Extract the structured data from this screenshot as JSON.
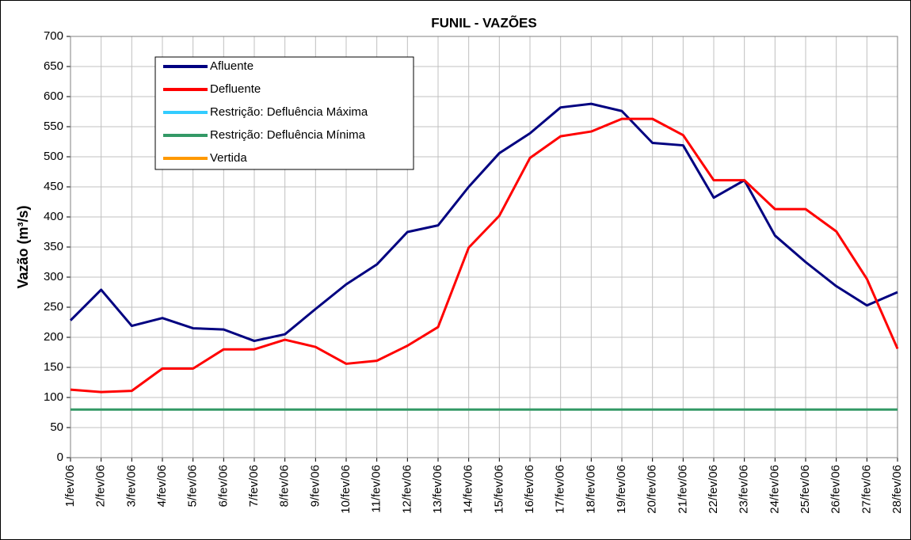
{
  "chart_data": {
    "type": "line",
    "title": "FUNIL - VAZÕES",
    "ylabel": "Vazão (m³/s)",
    "categories": [
      "1/fev/06",
      "2/fev/06",
      "3/fev/06",
      "4/fev/06",
      "5/fev/06",
      "6/fev/06",
      "7/fev/06",
      "8/fev/06",
      "9/fev/06",
      "10/fev/06",
      "11/fev/06",
      "12/fev/06",
      "13/fev/06",
      "14/fev/06",
      "15/fev/06",
      "16/fev/06",
      "17/fev/06",
      "18/fev/06",
      "19/fev/06",
      "20/fev/06",
      "21/fev/06",
      "22/fev/06",
      "23/fev/06",
      "24/fev/06",
      "25/fev/06",
      "26/fev/06",
      "27/fev/06",
      "28/fev/06"
    ],
    "series": [
      {
        "name": "Afluente",
        "color": "#000080",
        "values": [
          228,
          279,
          219,
          232,
          215,
          213,
          194,
          205,
          247,
          288,
          321,
          375,
          386,
          450,
          506,
          539,
          582,
          588,
          576,
          523,
          519,
          432,
          461,
          369,
          325,
          285,
          253,
          275
        ]
      },
      {
        "name": "Defluente",
        "color": "#ff0000",
        "values": [
          113,
          109,
          111,
          148,
          148,
          180,
          180,
          196,
          184,
          156,
          161,
          186,
          217,
          349,
          402,
          498,
          534,
          542,
          563,
          563,
          536,
          461,
          461,
          413,
          413,
          376,
          297,
          181
        ]
      },
      {
        "name": "Restrição: Defluência Máxima",
        "color": "#33ccff",
        "values": [
          null,
          null,
          null,
          null,
          null,
          null,
          null,
          null,
          null,
          null,
          null,
          null,
          null,
          null,
          null,
          null,
          null,
          null,
          null,
          null,
          null,
          null,
          null,
          null,
          null,
          null,
          null,
          null
        ]
      },
      {
        "name": "Restrição: Defluência Mínima",
        "color": "#339966",
        "values": [
          80,
          80,
          80,
          80,
          80,
          80,
          80,
          80,
          80,
          80,
          80,
          80,
          80,
          80,
          80,
          80,
          80,
          80,
          80,
          80,
          80,
          80,
          80,
          80,
          80,
          80,
          80,
          80
        ]
      },
      {
        "name": "Vertida",
        "color": "#ff9900",
        "values": [
          null,
          null,
          null,
          null,
          null,
          null,
          null,
          null,
          null,
          null,
          null,
          null,
          null,
          null,
          null,
          null,
          null,
          null,
          null,
          null,
          null,
          null,
          null,
          null,
          null,
          null,
          null,
          null
        ]
      }
    ],
    "ylim": [
      0,
      700
    ],
    "yticks": [
      0,
      50,
      100,
      150,
      200,
      250,
      300,
      350,
      400,
      450,
      500,
      550,
      600,
      650,
      700
    ],
    "grid": true,
    "legend": "upper left"
  }
}
